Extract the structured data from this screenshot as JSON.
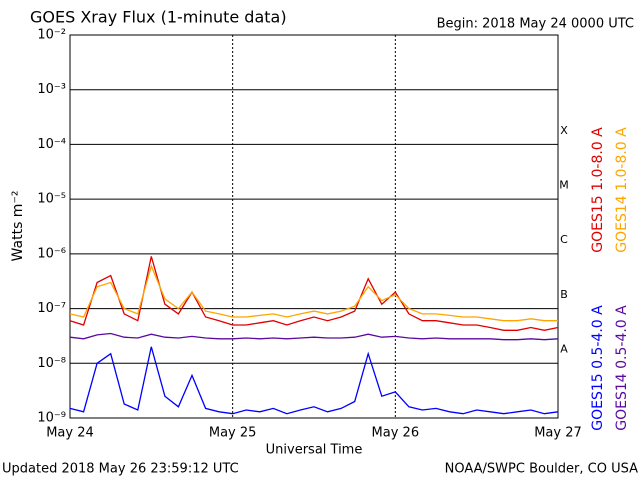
{
  "chart_data": {
    "type": "line",
    "title": "GOES Xray Flux (1-minute data)",
    "subtitle": "Begin:  2018 May 24 0000 UTC",
    "y_label": "Watts m⁻²",
    "x_label": "Universal Time",
    "footer_left": "Updated 2018 May 26 23:59:12 UTC",
    "footer_right": "NOAA/SWPC Boulder, CO USA",
    "log_y": true,
    "grid": true,
    "ylim": [
      1e-09,
      0.01
    ],
    "yticks": [
      {
        "value": 1e-09,
        "label": "10⁻⁹"
      },
      {
        "value": 1e-08,
        "label": "10⁻⁸"
      },
      {
        "value": 1e-07,
        "label": "10⁻⁷"
      },
      {
        "value": 1e-06,
        "label": "10⁻⁶"
      },
      {
        "value": 1e-05,
        "label": "10⁻⁵"
      },
      {
        "value": 0.0001,
        "label": "10⁻⁴"
      },
      {
        "value": 0.001,
        "label": "10⁻³"
      },
      {
        "value": 0.01,
        "label": "10⁻²"
      }
    ],
    "xlim": [
      "2018-05-24T00:00Z",
      "2018-05-27T00:00Z"
    ],
    "xticks": [
      {
        "value": "2018-05-24T00:00Z",
        "label": "May 24"
      },
      {
        "value": "2018-05-25T00:00Z",
        "label": "May 25"
      },
      {
        "value": "2018-05-26T00:00Z",
        "label": "May 26"
      },
      {
        "value": "2018-05-27T00:00Z",
        "label": "May 27"
      }
    ],
    "flare_classes": [
      {
        "label": "X",
        "value": 0.0001
      },
      {
        "label": "M",
        "value": 1e-05
      },
      {
        "label": "C",
        "value": 1e-06
      },
      {
        "label": "B",
        "value": 1e-07
      },
      {
        "label": "A",
        "value": 1e-08
      }
    ],
    "x": [
      "2018-05-24T00:00Z",
      "2018-05-24T02:00Z",
      "2018-05-24T04:00Z",
      "2018-05-24T06:00Z",
      "2018-05-24T08:00Z",
      "2018-05-24T10:00Z",
      "2018-05-24T12:00Z",
      "2018-05-24T14:00Z",
      "2018-05-24T16:00Z",
      "2018-05-24T18:00Z",
      "2018-05-24T20:00Z",
      "2018-05-24T22:00Z",
      "2018-05-25T00:00Z",
      "2018-05-25T02:00Z",
      "2018-05-25T04:00Z",
      "2018-05-25T06:00Z",
      "2018-05-25T08:00Z",
      "2018-05-25T10:00Z",
      "2018-05-25T12:00Z",
      "2018-05-25T14:00Z",
      "2018-05-25T16:00Z",
      "2018-05-25T18:00Z",
      "2018-05-25T20:00Z",
      "2018-05-25T22:00Z",
      "2018-05-26T00:00Z",
      "2018-05-26T02:00Z",
      "2018-05-26T04:00Z",
      "2018-05-26T06:00Z",
      "2018-05-26T08:00Z",
      "2018-05-26T10:00Z",
      "2018-05-26T12:00Z",
      "2018-05-26T14:00Z",
      "2018-05-26T16:00Z",
      "2018-05-26T18:00Z",
      "2018-05-26T20:00Z",
      "2018-05-26T22:00Z",
      "2018-05-27T00:00Z"
    ],
    "series": [
      {
        "name": "GOES15 1.0-8.0 A",
        "color": "#e00000",
        "values": [
          6e-08,
          5e-08,
          3e-07,
          4e-07,
          8e-08,
          6e-08,
          9e-07,
          1.2e-07,
          8e-08,
          2e-07,
          7e-08,
          6e-08,
          5e-08,
          5e-08,
          5.5e-08,
          6e-08,
          5e-08,
          6e-08,
          7e-08,
          6e-08,
          7e-08,
          9e-08,
          3.5e-07,
          1.2e-07,
          2e-07,
          8e-08,
          6e-08,
          6e-08,
          5.5e-08,
          5e-08,
          5e-08,
          4.5e-08,
          4e-08,
          4e-08,
          4.5e-08,
          4e-08,
          4.5e-08
        ]
      },
      {
        "name": "GOES14 1.0-8.0 A",
        "color": "#ffa500",
        "values": [
          8e-08,
          7e-08,
          2.5e-07,
          3e-07,
          1e-07,
          8e-08,
          6e-07,
          1.5e-07,
          1e-07,
          2e-07,
          9e-08,
          8e-08,
          7e-08,
          7e-08,
          7.5e-08,
          8e-08,
          7e-08,
          8e-08,
          9e-08,
          8e-08,
          9e-08,
          1.1e-07,
          2.5e-07,
          1.4e-07,
          1.8e-07,
          1e-07,
          8e-08,
          8e-08,
          7.5e-08,
          7e-08,
          7e-08,
          6.5e-08,
          6e-08,
          6e-08,
          6.5e-08,
          6e-08,
          6e-08
        ]
      },
      {
        "name": "GOES15 0.5-4.0 A",
        "color": "#0000ff",
        "values": [
          1.5e-09,
          1.3e-09,
          1e-08,
          1.5e-08,
          1.8e-09,
          1.4e-09,
          2e-08,
          2.5e-09,
          1.6e-09,
          6e-09,
          1.5e-09,
          1.3e-09,
          1.2e-09,
          1.4e-09,
          1.3e-09,
          1.5e-09,
          1.2e-09,
          1.4e-09,
          1.6e-09,
          1.3e-09,
          1.5e-09,
          2e-09,
          1.5e-08,
          2.5e-09,
          3e-09,
          1.6e-09,
          1.4e-09,
          1.5e-09,
          1.3e-09,
          1.2e-09,
          1.4e-09,
          1.3e-09,
          1.2e-09,
          1.3e-09,
          1.4e-09,
          1.2e-09,
          1.3e-09
        ]
      },
      {
        "name": "GOES14 0.5-4.0 A",
        "color": "#5a0aa0",
        "values": [
          3e-08,
          2.8e-08,
          3.3e-08,
          3.5e-08,
          3e-08,
          2.9e-08,
          3.4e-08,
          3e-08,
          2.9e-08,
          3.1e-08,
          2.9e-08,
          2.8e-08,
          2.8e-08,
          2.9e-08,
          2.8e-08,
          2.9e-08,
          2.8e-08,
          2.9e-08,
          3e-08,
          2.9e-08,
          2.9e-08,
          3e-08,
          3.4e-08,
          3e-08,
          3.1e-08,
          2.9e-08,
          2.8e-08,
          2.9e-08,
          2.8e-08,
          2.8e-08,
          2.8e-08,
          2.8e-08,
          2.7e-08,
          2.7e-08,
          2.8e-08,
          2.7e-08,
          2.8e-08
        ]
      }
    ]
  }
}
